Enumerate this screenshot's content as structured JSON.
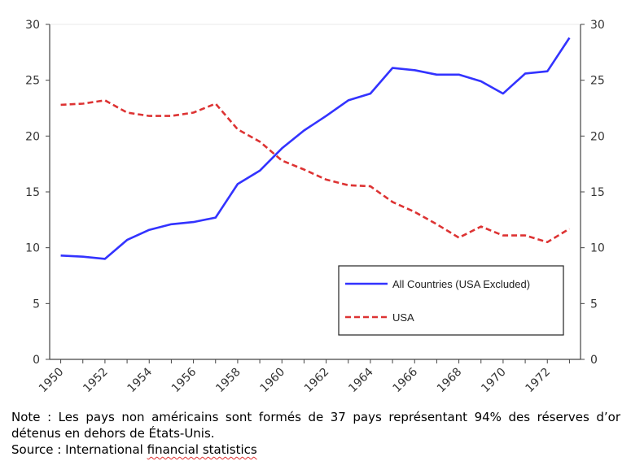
{
  "chart_data": {
    "type": "line",
    "title": "",
    "xlabel": "",
    "ylabel": "",
    "x": [
      1950,
      1951,
      1952,
      1953,
      1954,
      1955,
      1956,
      1957,
      1958,
      1959,
      1960,
      1961,
      1962,
      1963,
      1964,
      1965,
      1966,
      1967,
      1968,
      1969,
      1970,
      1971,
      1972,
      1973
    ],
    "xlim": [
      1949.5,
      1973.5
    ],
    "ylim": [
      0,
      30
    ],
    "x_ticks": [
      "1950",
      "1952",
      "1954",
      "1956",
      "1958",
      "1960",
      "1962",
      "1964",
      "1966",
      "1968",
      "1970",
      "1972"
    ],
    "y_ticks": [
      "0",
      "5",
      "10",
      "15",
      "20",
      "25",
      "30"
    ],
    "grid": false,
    "legend_position": "lower-right",
    "series": [
      {
        "name": "All Countries (USA Excluded)",
        "color": "#3333ff",
        "style": "solid",
        "values": [
          9.3,
          9.2,
          9.0,
          10.7,
          11.6,
          12.1,
          12.3,
          12.7,
          15.7,
          16.9,
          18.9,
          20.5,
          21.8,
          23.2,
          23.8,
          26.1,
          25.9,
          25.5,
          25.5,
          24.9,
          23.8,
          25.6,
          25.8,
          28.8
        ]
      },
      {
        "name": "USA",
        "color": "#dd3333",
        "style": "dashed",
        "values": [
          22.8,
          22.9,
          23.2,
          22.1,
          21.8,
          21.8,
          22.1,
          22.9,
          20.6,
          19.5,
          17.8,
          17.0,
          16.1,
          15.6,
          15.5,
          14.1,
          13.2,
          12.1,
          10.9,
          11.9,
          11.1,
          11.1,
          10.5,
          11.7
        ]
      }
    ]
  },
  "footnote": {
    "note": "Note : Les pays non américains sont formés de 37 pays représentant 94% des réserves d’or détenus en dehors de États-Unis.",
    "source_prefix": "Source : International ",
    "source_flagged": "financial statistics"
  }
}
